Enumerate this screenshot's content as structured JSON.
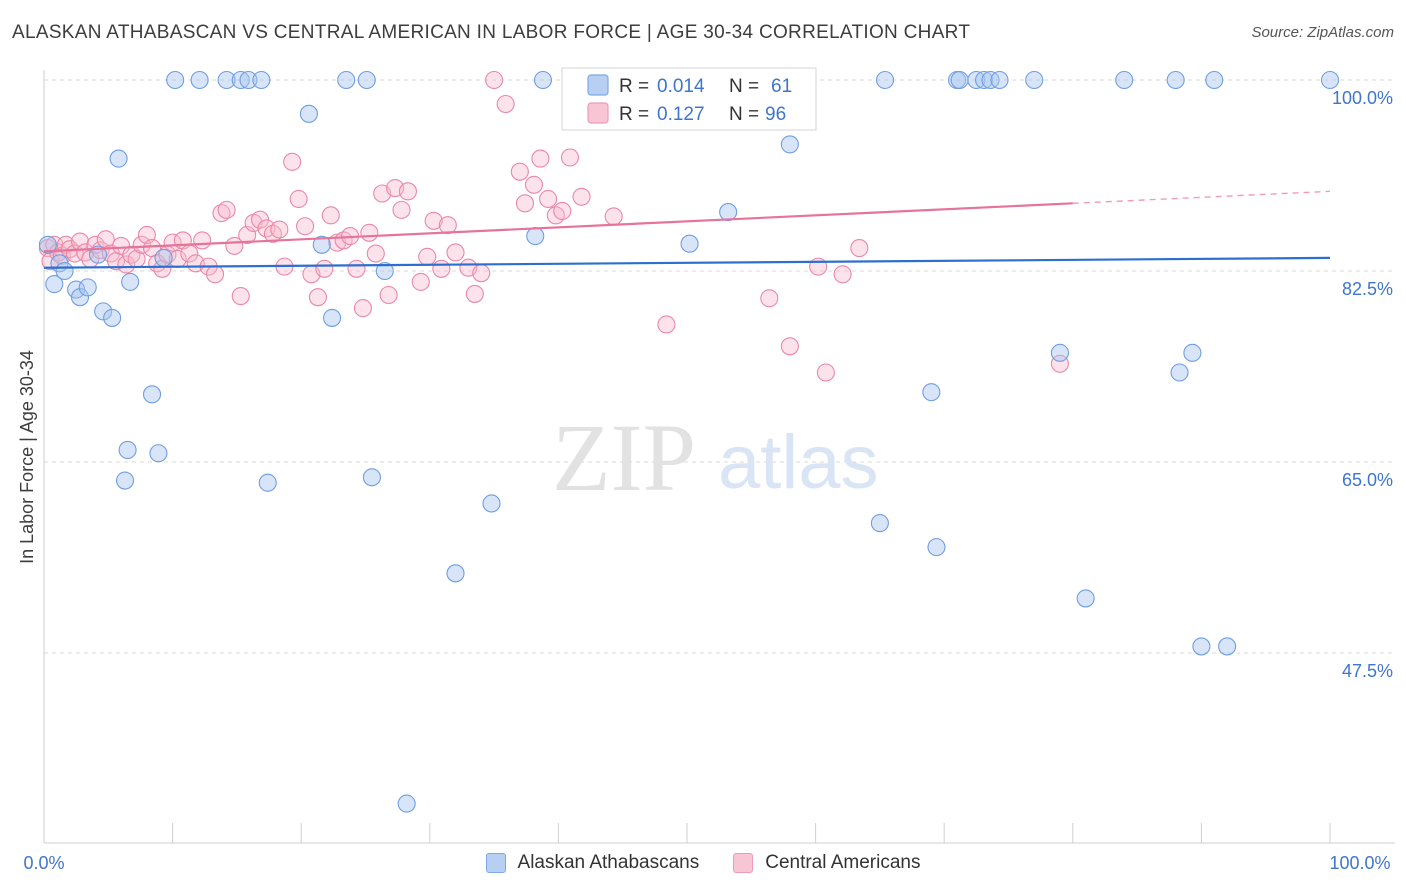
{
  "header": {
    "title": "ALASKAN ATHABASCAN VS CENTRAL AMERICAN IN LABOR FORCE | AGE 30-34 CORRELATION CHART",
    "source": "Source: ZipAtlas.com"
  },
  "watermark": {
    "zip": "ZIP",
    "atlas": "atlas"
  },
  "legend": {
    "rows": [
      {
        "r_label": "R =",
        "r_value": "0.014",
        "n_label": "N =",
        "n_value": "61"
      },
      {
        "r_label": "R =",
        "r_value": "0.127",
        "n_label": "N =",
        "n_value": "96"
      }
    ]
  },
  "bottom_legend": {
    "items": [
      {
        "label": "Alaskan Athabascans"
      },
      {
        "label": "Central Americans"
      }
    ]
  },
  "colors": {
    "blue_fill": "#a9c6f0",
    "blue_stroke": "#6f9ee0",
    "blue_line": "#2d6fcf",
    "pink_fill": "#f7b9cc",
    "pink_stroke": "#ea88a7",
    "pink_line": "#e5739a",
    "tick_label": "#3f76c9",
    "grid": "#d8d8d8"
  },
  "chart_data": {
    "type": "scatter",
    "title": "ALASKAN ATHABASCAN VS CENTRAL AMERICAN IN LABOR FORCE | AGE 30-34 CORRELATION CHART",
    "ylabel": "In Labor Force | Age 30-34",
    "xlabel": "",
    "x_tick_labels": [
      "0.0%",
      "100.0%"
    ],
    "y_ticks": [
      {
        "value": 100.0,
        "label": "100.0%"
      },
      {
        "value": 82.5,
        "label": "82.5%"
      },
      {
        "value": 65.0,
        "label": "65.0%"
      },
      {
        "value": 47.5,
        "label": "47.5%"
      }
    ],
    "xlim": [
      0,
      100
    ],
    "ylim": [
      30,
      101.5
    ],
    "grid": true,
    "legend_placement": "top-center",
    "series": [
      {
        "name": "Alaskan Athabascans",
        "r": 0.014,
        "n": 61,
        "trend": {
          "x0": 0,
          "y0": 82.8,
          "x1": 100,
          "y1": 83.7
        },
        "points": [
          [
            0.3,
            84.9
          ],
          [
            0.8,
            81.3
          ],
          [
            1.2,
            83.2
          ],
          [
            1.6,
            82.5
          ],
          [
            2.5,
            80.8
          ],
          [
            2.8,
            80.1
          ],
          [
            3.4,
            81.0
          ],
          [
            4.2,
            84.0
          ],
          [
            4.6,
            78.8
          ],
          [
            5.3,
            78.2
          ],
          [
            5.8,
            92.8
          ],
          [
            6.3,
            63.3
          ],
          [
            6.5,
            66.1
          ],
          [
            6.7,
            81.5
          ],
          [
            8.4,
            71.2
          ],
          [
            8.9,
            65.8
          ],
          [
            9.3,
            83.7
          ],
          [
            10.2,
            100.0
          ],
          [
            12.1,
            100.0
          ],
          [
            14.2,
            100.0
          ],
          [
            15.3,
            100.0
          ],
          [
            15.9,
            100.0
          ],
          [
            16.9,
            100.0
          ],
          [
            17.4,
            63.1
          ],
          [
            20.6,
            96.9
          ],
          [
            21.6,
            84.9
          ],
          [
            22.4,
            78.2
          ],
          [
            23.5,
            100.0
          ],
          [
            25.1,
            100.0
          ],
          [
            25.5,
            63.6
          ],
          [
            26.5,
            82.5
          ],
          [
            28.2,
            33.7
          ],
          [
            32.0,
            54.8
          ],
          [
            34.8,
            61.2
          ],
          [
            38.2,
            85.7
          ],
          [
            38.8,
            100.0
          ],
          [
            47.7,
            100.0
          ],
          [
            50.2,
            85.0
          ],
          [
            53.2,
            87.9
          ],
          [
            58.0,
            94.1
          ],
          [
            65.4,
            100.0
          ],
          [
            65.0,
            59.4
          ],
          [
            69.0,
            71.4
          ],
          [
            69.4,
            57.2
          ],
          [
            71.0,
            100.0
          ],
          [
            71.2,
            100.0
          ],
          [
            72.5,
            100.0
          ],
          [
            73.1,
            100.0
          ],
          [
            73.6,
            100.0
          ],
          [
            74.3,
            100.0
          ],
          [
            77.0,
            100.0
          ],
          [
            79.0,
            75.0
          ],
          [
            81.0,
            52.5
          ],
          [
            84.0,
            100.0
          ],
          [
            88.0,
            100.0
          ],
          [
            88.3,
            73.2
          ],
          [
            89.3,
            75.0
          ],
          [
            90.0,
            48.1
          ],
          [
            91.0,
            100.0
          ],
          [
            92.0,
            48.1
          ],
          [
            100.0,
            100.0
          ]
        ]
      },
      {
        "name": "Central Americans",
        "r": 0.127,
        "n": 96,
        "trend": {
          "x0": 0,
          "y0": 84.3,
          "x1": 80,
          "y1": 88.7,
          "dash_to_x": 100,
          "dash_to_y": 89.8
        },
        "points": [
          [
            0.3,
            84.6
          ],
          [
            0.5,
            83.4
          ],
          [
            0.8,
            84.9
          ],
          [
            1.1,
            84.2
          ],
          [
            1.4,
            83.9
          ],
          [
            1.7,
            84.9
          ],
          [
            2.0,
            84.5
          ],
          [
            2.4,
            84.1
          ],
          [
            2.8,
            85.2
          ],
          [
            3.2,
            84.2
          ],
          [
            3.6,
            83.6
          ],
          [
            4.0,
            84.9
          ],
          [
            4.4,
            84.4
          ],
          [
            4.8,
            85.4
          ],
          [
            5.2,
            84.1
          ],
          [
            5.6,
            83.4
          ],
          [
            6.0,
            84.8
          ],
          [
            6.4,
            83.1
          ],
          [
            6.8,
            84.0
          ],
          [
            7.2,
            83.6
          ],
          [
            7.6,
            84.9
          ],
          [
            8.0,
            85.8
          ],
          [
            8.4,
            84.6
          ],
          [
            8.8,
            83.2
          ],
          [
            9.2,
            82.7
          ],
          [
            9.6,
            84.0
          ],
          [
            10.0,
            85.1
          ],
          [
            10.4,
            83.6
          ],
          [
            10.8,
            85.3
          ],
          [
            11.3,
            84.1
          ],
          [
            11.8,
            83.2
          ],
          [
            12.3,
            85.3
          ],
          [
            12.8,
            82.9
          ],
          [
            13.3,
            82.2
          ],
          [
            13.8,
            87.8
          ],
          [
            14.2,
            88.1
          ],
          [
            14.8,
            84.8
          ],
          [
            15.3,
            80.2
          ],
          [
            15.8,
            85.8
          ],
          [
            16.3,
            86.9
          ],
          [
            16.8,
            87.2
          ],
          [
            17.3,
            86.4
          ],
          [
            17.8,
            85.9
          ],
          [
            18.3,
            86.3
          ],
          [
            18.7,
            82.9
          ],
          [
            19.3,
            92.5
          ],
          [
            19.8,
            89.1
          ],
          [
            20.3,
            86.6
          ],
          [
            20.8,
            82.2
          ],
          [
            21.3,
            80.1
          ],
          [
            21.8,
            82.7
          ],
          [
            22.3,
            87.6
          ],
          [
            22.8,
            85.1
          ],
          [
            23.3,
            85.3
          ],
          [
            23.8,
            85.7
          ],
          [
            24.3,
            82.7
          ],
          [
            24.8,
            79.1
          ],
          [
            25.3,
            86.0
          ],
          [
            25.8,
            84.1
          ],
          [
            26.3,
            89.6
          ],
          [
            26.8,
            80.3
          ],
          [
            27.3,
            90.1
          ],
          [
            27.8,
            88.1
          ],
          [
            28.3,
            89.8
          ],
          [
            29.3,
            81.5
          ],
          [
            29.8,
            83.8
          ],
          [
            30.3,
            87.1
          ],
          [
            30.9,
            82.7
          ],
          [
            31.4,
            86.7
          ],
          [
            32.0,
            84.2
          ],
          [
            33.0,
            82.8
          ],
          [
            33.5,
            80.4
          ],
          [
            34.0,
            82.3
          ],
          [
            35.0,
            100.0
          ],
          [
            35.9,
            97.8
          ],
          [
            37.0,
            91.6
          ],
          [
            37.4,
            88.7
          ],
          [
            38.1,
            90.4
          ],
          [
            38.6,
            92.8
          ],
          [
            39.2,
            89.1
          ],
          [
            39.8,
            87.6
          ],
          [
            40.3,
            88.0
          ],
          [
            40.9,
            92.9
          ],
          [
            41.8,
            89.3
          ],
          [
            42.6,
            99.8
          ],
          [
            43.2,
            96.9
          ],
          [
            44.3,
            87.5
          ],
          [
            48.4,
            77.6
          ],
          [
            52.2,
            100.0
          ],
          [
            56.4,
            80.0
          ],
          [
            58.0,
            75.6
          ],
          [
            60.2,
            82.9
          ],
          [
            60.8,
            73.2
          ],
          [
            62.1,
            82.2
          ],
          [
            63.4,
            84.6
          ],
          [
            79.0,
            74.0
          ]
        ]
      }
    ]
  }
}
